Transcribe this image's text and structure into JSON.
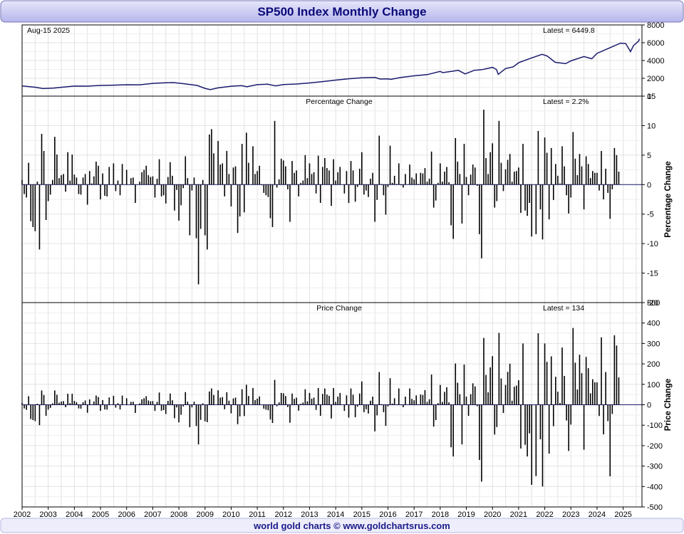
{
  "title": "SP500 Index Monthly Change",
  "footer": "world gold charts © www.goldchartsrus.com",
  "colors": {
    "title_bg_top": "#dcdcf8",
    "title_bg_bottom": "#b8b8ee",
    "title_text": "#0a0a7a",
    "footer_text": "#1a1a8a",
    "price_line": "#1a1a6e",
    "bars": "#000000",
    "grid": "#e2e2e2"
  },
  "chart_data": [
    {
      "type": "line",
      "name": "price-panel",
      "date_label": "Aug-15  2025",
      "latest_label": "Latest = 6449.8",
      "ylim": [
        0,
        8000
      ],
      "yticks": [
        0,
        2000,
        4000,
        6000,
        8000
      ],
      "x": [
        2002.0,
        2002.5,
        2002.8,
        2003.2,
        2003.5,
        2004.0,
        2004.5,
        2005.0,
        2005.5,
        2006.0,
        2006.5,
        2007.0,
        2007.5,
        2007.8,
        2008.3,
        2008.7,
        2009.0,
        2009.2,
        2009.5,
        2010.0,
        2010.4,
        2010.6,
        2011.0,
        2011.4,
        2011.7,
        2012.0,
        2012.5,
        2013.0,
        2013.5,
        2014.0,
        2014.5,
        2015.0,
        2015.5,
        2015.7,
        2016.0,
        2016.1,
        2016.5,
        2017.0,
        2017.5,
        2018.0,
        2018.1,
        2018.7,
        2018.95,
        2019.3,
        2019.6,
        2020.0,
        2020.15,
        2020.22,
        2020.5,
        2020.8,
        2021.0,
        2021.5,
        2021.9,
        2022.1,
        2022.4,
        2022.8,
        2023.0,
        2023.5,
        2023.8,
        2024.0,
        2024.5,
        2024.9,
        2025.1,
        2025.28,
        2025.4,
        2025.6,
        2025.62
      ],
      "y": [
        1140,
        1000,
        850,
        900,
        990,
        1130,
        1120,
        1200,
        1230,
        1280,
        1270,
        1430,
        1500,
        1520,
        1350,
        1200,
        870,
        740,
        930,
        1110,
        1180,
        1050,
        1290,
        1340,
        1150,
        1300,
        1360,
        1480,
        1630,
        1800,
        1950,
        2060,
        2100,
        1920,
        1940,
        1880,
        2100,
        2280,
        2420,
        2780,
        2640,
        2900,
        2500,
        2900,
        2980,
        3230,
        3000,
        2450,
        3100,
        3300,
        3750,
        4300,
        4700,
        4500,
        3800,
        3650,
        3960,
        4450,
        4200,
        4800,
        5450,
        5950,
        5900,
        5000,
        5700,
        6200,
        6449.8
      ]
    },
    {
      "type": "bar",
      "name": "percentage-panel",
      "title": "Percentage Change",
      "latest_label": "Latest = 2.2%",
      "ylabel": "Percentage Change",
      "ylim": [
        -20,
        15
      ],
      "yticks": [
        -20,
        -15,
        -10,
        -5,
        0,
        5,
        10,
        15
      ],
      "start": 2002.0,
      "step": 0.0833333,
      "values": [
        0.8,
        -1.6,
        -2.2,
        3.7,
        -6.2,
        -7.2,
        -7.9,
        0.5,
        -11.0,
        8.6,
        5.7,
        -6.0,
        -2.8,
        -1.7,
        0.8,
        8.1,
        5.1,
        1.1,
        1.6,
        1.8,
        -1.2,
        5.5,
        0.7,
        5.1,
        1.7,
        1.2,
        -1.6,
        -1.7,
        1.2,
        1.8,
        -3.4,
        2.3,
        0.2,
        1.4,
        3.9,
        3.2,
        -2.5,
        1.9,
        -1.9,
        -2.0,
        3.0,
        0.0,
        3.6,
        -1.1,
        0.7,
        -1.8,
        3.5,
        0.0,
        2.5,
        0.0,
        1.1,
        1.2,
        -3.1,
        0.0,
        0.5,
        2.1,
        2.5,
        3.2,
        1.6,
        1.3,
        1.4,
        -2.2,
        1.0,
        4.3,
        -2.0,
        -1.8,
        -3.2,
        1.3,
        3.8,
        1.5,
        -4.4,
        -0.9,
        -6.1,
        -3.5,
        -0.6,
        4.8,
        1.1,
        -8.6,
        -1.0,
        1.2,
        -9.1,
        -16.9,
        -7.5,
        0.8,
        -8.6,
        -11.0,
        8.5,
        9.4,
        5.3,
        0.0,
        7.4,
        3.4,
        3.6,
        -2.0,
        5.7,
        1.8,
        -3.7,
        2.9,
        3.1,
        -8.2,
        -5.4,
        6.9,
        -4.7,
        8.8,
        3.7,
        0.0,
        6.5,
        1.8,
        2.3,
        3.2,
        -0.1,
        -1.4,
        -1.8,
        -2.1,
        -5.7,
        -7.2,
        10.8,
        -0.5,
        0.9,
        4.4,
        4.1,
        3.1,
        -0.8,
        -6.3,
        4.0,
        2.0,
        2.4,
        -2.0,
        0.3,
        0.7,
        5.0,
        1.1,
        3.6,
        1.8,
        2.1,
        -1.5,
        4.9,
        -3.1,
        3.0,
        4.5,
        2.8,
        2.4,
        -3.6,
        4.3,
        0.7,
        2.1,
        3.0,
        0.0,
        -1.5,
        2.3,
        -3.1,
        4.0,
        2.4,
        -2.9,
        -0.4,
        2.7,
        5.5,
        -1.7,
        -1.0,
        -2.1,
        1.0,
        2.0,
        -6.3,
        -2.6,
        8.3,
        0.1,
        -1.8,
        -5.1,
        -0.4,
        6.6,
        0.3,
        1.5,
        0.1,
        3.6,
        -0.1,
        -0.5,
        1.8,
        0.0,
        3.4,
        1.2,
        0.9,
        1.9,
        0.1,
        2.0,
        1.9,
        2.8,
        0.5,
        1.0,
        5.6,
        -3.9,
        -2.7,
        0.3,
        3.6,
        0.5,
        2.2,
        3.0,
        0.4,
        -6.9,
        -9.2,
        7.9,
        3.9,
        1.8,
        -6.6,
        6.9,
        1.3,
        -1.8,
        1.7,
        3.4,
        2.9,
        -0.2,
        -8.4,
        -12.5,
        12.7,
        4.5,
        1.8,
        5.5,
        7.0,
        -3.9,
        -2.8,
        10.8,
        3.7,
        -1.1,
        2.6,
        4.2,
        5.2,
        0.5,
        2.2,
        2.3,
        2.9,
        -4.8,
        6.9,
        -4.4,
        -5.3,
        -3.1,
        -8.8,
        0.0,
        -8.4,
        9.1,
        -4.2,
        -9.3,
        8.0,
        5.4,
        -5.9,
        6.2,
        -2.6,
        3.5,
        1.5,
        0.2,
        6.5,
        3.1,
        -1.8,
        -4.9,
        -2.2,
        8.9,
        4.4,
        1.6,
        5.2,
        3.1,
        -4.2,
        4.8,
        3.5,
        1.1,
        2.3,
        2.0,
        2.0,
        -1.0,
        5.7,
        -2.5,
        2.7,
        -1.4,
        -5.8,
        -0.8,
        6.2,
        5.0,
        2.2
      ]
    },
    {
      "type": "bar",
      "name": "price-change-panel",
      "title": "Price Change",
      "latest_label": "Latest = 134",
      "ylabel": "Price Change",
      "ylim": [
        -500,
        500
      ],
      "yticks": [
        -500,
        -400,
        -300,
        -200,
        -100,
        0,
        100,
        200,
        300,
        400,
        500
      ],
      "start": 2002.0,
      "step": 0.0833333,
      "values": [
        9,
        -18,
        -25,
        42,
        -70,
        -75,
        -80,
        5,
        -100,
        70,
        48,
        -54,
        -24,
        -15,
        7,
        70,
        49,
        10,
        16,
        18,
        -12,
        54,
        8,
        54,
        19,
        13,
        -18,
        -19,
        13,
        21,
        -39,
        26,
        2,
        16,
        45,
        38,
        -30,
        23,
        -23,
        -24,
        36,
        0,
        44,
        -14,
        8,
        -23,
        45,
        0,
        32,
        0,
        14,
        15,
        -40,
        0,
        7,
        27,
        32,
        42,
        21,
        17,
        18,
        -30,
        14,
        60,
        -29,
        -26,
        -45,
        19,
        55,
        22,
        -66,
        -13,
        -86,
        -49,
        -8,
        62,
        15,
        -110,
        -13,
        15,
        -104,
        -194,
        -74,
        7,
        -81,
        -85,
        65,
        80,
        48,
        0,
        71,
        35,
        38,
        -22,
        61,
        20,
        -42,
        31,
        35,
        -95,
        -57,
        76,
        -55,
        98,
        43,
        0,
        82,
        23,
        30,
        41,
        -1,
        -19,
        -24,
        -27,
        -72,
        -89,
        122,
        -7,
        12,
        58,
        56,
        43,
        -11,
        -88,
        55,
        29,
        35,
        -29,
        5,
        11,
        76,
        17,
        58,
        30,
        35,
        -25,
        82,
        -54,
        53,
        80,
        50,
        44,
        -67,
        82,
        14,
        40,
        58,
        0,
        -30,
        46,
        -63,
        80,
        49,
        -61,
        -9,
        55,
        114,
        -36,
        -22,
        -43,
        20,
        40,
        -130,
        -52,
        160,
        3,
        -36,
        -103,
        -8,
        130,
        6,
        32,
        2,
        80,
        -2,
        -12,
        40,
        0,
        80,
        29,
        22,
        46,
        2,
        50,
        48,
        72,
        14,
        27,
        148,
        -107,
        -75,
        8,
        97,
        14,
        63,
        86,
        12,
        -208,
        -253,
        202,
        108,
        52,
        -194,
        197,
        40,
        -54,
        52,
        105,
        90,
        -7,
        -270,
        -376,
        327,
        146,
        61,
        183,
        238,
        -146,
        -109,
        352,
        129,
        -40,
        97,
        161,
        201,
        20,
        88,
        94,
        120,
        -214,
        300,
        -196,
        -253,
        -140,
        -392,
        0,
        -349,
        350,
        -169,
        -400,
        300,
        210,
        -239,
        237,
        -105,
        137,
        64,
        9,
        280,
        141,
        -77,
        -226,
        -97,
        376,
        206,
        75,
        245,
        155,
        -220,
        234,
        179,
        56,
        125,
        110,
        110,
        -55,
        330,
        -145,
        160,
        -80,
        -350,
        -45,
        340,
        290,
        134
      ]
    }
  ],
  "x_axis": {
    "ticks": [
      2002,
      2003,
      2004,
      2005,
      2006,
      2007,
      2008,
      2009,
      2010,
      2011,
      2012,
      2013,
      2014,
      2015,
      2016,
      2017,
      2018,
      2019,
      2020,
      2021,
      2022,
      2023,
      2024,
      2025
    ],
    "xlim": [
      2002.0,
      2025.72
    ]
  }
}
